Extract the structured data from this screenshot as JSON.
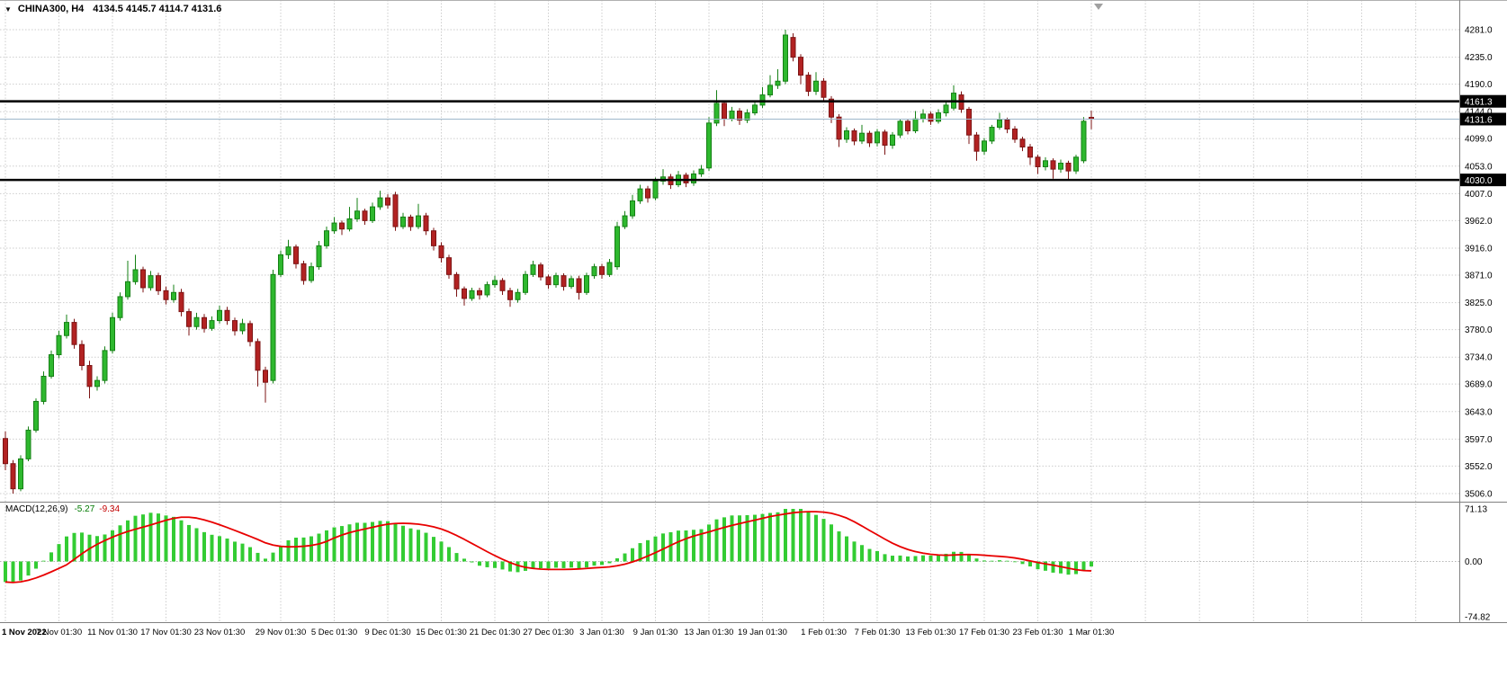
{
  "window": {
    "background": "#ffffff"
  },
  "header": {
    "symbol": "CHINA300, H4",
    "ohlc": "4134.5 4145.7 4114.7 4131.6",
    "open": 4134.5,
    "high": 4145.7,
    "low": 4114.7,
    "close": 4131.6
  },
  "colors": {
    "background": "#ffffff",
    "grid": "#cdcdcd",
    "candle_up": "#2eb82e",
    "candle_up_border": "#158015",
    "candle_down": "#b22222",
    "candle_down_border": "#7c1414",
    "level_line": "#000000",
    "bid_line": "#9db7cb",
    "macd_histogram": "#33cc33",
    "macd_signal": "#e80000",
    "axis_text": "#000000",
    "price_label_bg": "#000000",
    "price_label_text": "#ffffff",
    "separator": "#808080",
    "shift_marker": "#a0a0a0"
  },
  "chart_data": {
    "type": "candlestick",
    "symbol": "CHINA300",
    "timeframe": "H4",
    "grid": true,
    "price_axis_ticks": [
      4281.0,
      4235.0,
      4190.0,
      4144.0,
      4099.0,
      4053.0,
      4007.0,
      3962.0,
      3916.0,
      3871.0,
      3825.0,
      3780.0,
      3734.0,
      3689.0,
      3643.0,
      3597.0,
      3552.0,
      3506.0
    ],
    "price_range": [
      3506.0,
      4281.0
    ],
    "horizontal_lines": [
      {
        "price": 4161.3,
        "label": "4161.3"
      },
      {
        "price": 4030.0,
        "label": "4030.0"
      }
    ],
    "bid": {
      "price": 4131.6,
      "label": "4131.6"
    },
    "time_axis": [
      {
        "label": "1 Nov 2022",
        "candle": 0
      },
      {
        "label": "7 Nov 01:30",
        "candle": 7
      },
      {
        "label": "11 Nov 01:30",
        "candle": 14
      },
      {
        "label": "17 Nov 01:30",
        "candle": 21
      },
      {
        "label": "23 Nov 01:30",
        "candle": 28
      },
      {
        "label": "29 Nov 01:30",
        "candle": 36
      },
      {
        "label": "5 Dec 01:30",
        "candle": 43
      },
      {
        "label": "9 Dec 01:30",
        "candle": 50
      },
      {
        "label": "15 Dec 01:30",
        "candle": 57
      },
      {
        "label": "21 Dec 01:30",
        "candle": 64
      },
      {
        "label": "27 Dec 01:30",
        "candle": 71
      },
      {
        "label": "3 Jan 01:30",
        "candle": 78
      },
      {
        "label": "9 Jan 01:30",
        "candle": 85
      },
      {
        "label": "13 Jan 01:30",
        "candle": 92
      },
      {
        "label": "19 Jan 01:30",
        "candle": 99
      },
      {
        "label": "1 Feb 01:30",
        "candle": 107
      },
      {
        "label": "7 Feb 01:30",
        "candle": 114
      },
      {
        "label": "13 Feb 01:30",
        "candle": 121
      },
      {
        "label": "17 Feb 01:30",
        "candle": 128
      },
      {
        "label": "23 Feb 01:30",
        "candle": 135
      },
      {
        "label": "1 Mar 01:30",
        "candle": 142
      }
    ],
    "candles": [
      [
        3598,
        3610,
        3545,
        3556
      ],
      [
        3556,
        3562,
        3506,
        3514
      ],
      [
        3514,
        3570,
        3510,
        3564
      ],
      [
        3564,
        3618,
        3560,
        3612
      ],
      [
        3612,
        3665,
        3608,
        3660
      ],
      [
        3660,
        3710,
        3655,
        3702
      ],
      [
        3702,
        3745,
        3698,
        3738
      ],
      [
        3738,
        3778,
        3732,
        3770
      ],
      [
        3770,
        3805,
        3765,
        3792
      ],
      [
        3792,
        3798,
        3748,
        3755
      ],
      [
        3755,
        3762,
        3712,
        3720
      ],
      [
        3720,
        3728,
        3665,
        3685
      ],
      [
        3685,
        3702,
        3678,
        3695
      ],
      [
        3695,
        3752,
        3690,
        3745
      ],
      [
        3745,
        3808,
        3740,
        3800
      ],
      [
        3800,
        3842,
        3795,
        3835
      ],
      [
        3835,
        3895,
        3830,
        3860
      ],
      [
        3860,
        3905,
        3855,
        3880
      ],
      [
        3880,
        3885,
        3842,
        3850
      ],
      [
        3850,
        3878,
        3845,
        3870
      ],
      [
        3870,
        3875,
        3838,
        3845
      ],
      [
        3845,
        3852,
        3822,
        3830
      ],
      [
        3830,
        3855,
        3825,
        3842
      ],
      [
        3842,
        3848,
        3802,
        3810
      ],
      [
        3810,
        3815,
        3770,
        3785
      ],
      [
        3785,
        3808,
        3780,
        3800
      ],
      [
        3800,
        3806,
        3775,
        3782
      ],
      [
        3782,
        3802,
        3778,
        3795
      ],
      [
        3795,
        3820,
        3790,
        3812
      ],
      [
        3812,
        3818,
        3788,
        3795
      ],
      [
        3795,
        3800,
        3770,
        3778
      ],
      [
        3778,
        3798,
        3772,
        3790
      ],
      [
        3790,
        3795,
        3752,
        3760
      ],
      [
        3760,
        3765,
        3685,
        3712
      ],
      [
        3712,
        3718,
        3658,
        3692
      ],
      [
        3695,
        3880,
        3690,
        3872
      ],
      [
        3872,
        3912,
        3868,
        3905
      ],
      [
        3905,
        3930,
        3898,
        3918
      ],
      [
        3918,
        3922,
        3882,
        3890
      ],
      [
        3890,
        3895,
        3855,
        3862
      ],
      [
        3862,
        3892,
        3858,
        3885
      ],
      [
        3885,
        3928,
        3880,
        3920
      ],
      [
        3920,
        3952,
        3915,
        3945
      ],
      [
        3945,
        3968,
        3940,
        3958
      ],
      [
        3958,
        3962,
        3938,
        3948
      ],
      [
        3948,
        3985,
        3944,
        3965
      ],
      [
        3965,
        4000,
        3960,
        3978
      ],
      [
        3978,
        3982,
        3955,
        3962
      ],
      [
        3962,
        3992,
        3958,
        3985
      ],
      [
        3985,
        4012,
        3980,
        4000
      ],
      [
        4000,
        4006,
        3982,
        3988
      ],
      [
        4005,
        4010,
        3945,
        3952
      ],
      [
        3952,
        3975,
        3948,
        3968
      ],
      [
        3968,
        3972,
        3945,
        3952
      ],
      [
        3952,
        3990,
        3948,
        3970
      ],
      [
        3970,
        3975,
        3938,
        3945
      ],
      [
        3945,
        3950,
        3912,
        3920
      ],
      [
        3920,
        3926,
        3892,
        3900
      ],
      [
        3900,
        3905,
        3865,
        3872
      ],
      [
        3872,
        3876,
        3835,
        3848
      ],
      [
        3848,
        3852,
        3820,
        3832
      ],
      [
        3832,
        3850,
        3828,
        3845
      ],
      [
        3845,
        3850,
        3830,
        3838
      ],
      [
        3838,
        3860,
        3834,
        3855
      ],
      [
        3855,
        3870,
        3850,
        3862
      ],
      [
        3862,
        3866,
        3838,
        3845
      ],
      [
        3845,
        3850,
        3818,
        3830
      ],
      [
        3830,
        3848,
        3825,
        3842
      ],
      [
        3842,
        3878,
        3838,
        3872
      ],
      [
        3872,
        3895,
        3868,
        3888
      ],
      [
        3888,
        3892,
        3862,
        3868
      ],
      [
        3868,
        3872,
        3848,
        3855
      ],
      [
        3855,
        3875,
        3850,
        3870
      ],
      [
        3870,
        3874,
        3845,
        3852
      ],
      [
        3852,
        3870,
        3848,
        3865
      ],
      [
        3865,
        3870,
        3830,
        3842
      ],
      [
        3842,
        3875,
        3838,
        3870
      ],
      [
        3870,
        3890,
        3865,
        3885
      ],
      [
        3885,
        3890,
        3865,
        3872
      ],
      [
        3872,
        3898,
        3868,
        3892
      ],
      [
        3885,
        3960,
        3880,
        3952
      ],
      [
        3952,
        3978,
        3948,
        3970
      ],
      [
        3970,
        4005,
        3965,
        3995
      ],
      [
        3995,
        4022,
        3990,
        4015
      ],
      [
        4015,
        4020,
        3992,
        4000
      ],
      [
        4000,
        4034,
        3996,
        4028
      ],
      [
        4028,
        4048,
        4022,
        4035
      ],
      [
        4035,
        4040,
        4015,
        4022
      ],
      [
        4022,
        4045,
        4018,
        4038
      ],
      [
        4038,
        4042,
        4018,
        4025
      ],
      [
        4025,
        4046,
        4020,
        4040
      ],
      [
        4040,
        4055,
        4035,
        4048
      ],
      [
        4050,
        4135,
        4045,
        4125
      ],
      [
        4125,
        4180,
        4120,
        4158
      ],
      [
        4158,
        4162,
        4120,
        4132
      ],
      [
        4132,
        4152,
        4128,
        4145
      ],
      [
        4145,
        4150,
        4122,
        4130
      ],
      [
        4130,
        4148,
        4125,
        4142
      ],
      [
        4142,
        4162,
        4138,
        4155
      ],
      [
        4155,
        4185,
        4150,
        4172
      ],
      [
        4172,
        4205,
        4168,
        4188
      ],
      [
        4188,
        4215,
        4182,
        4195
      ],
      [
        4195,
        4281,
        4190,
        4272
      ],
      [
        4268,
        4275,
        4228,
        4235
      ],
      [
        4235,
        4240,
        4190,
        4205
      ],
      [
        4205,
        4210,
        4170,
        4178
      ],
      [
        4178,
        4210,
        4172,
        4195
      ],
      [
        4195,
        4200,
        4160,
        4168
      ],
      [
        4165,
        4170,
        4125,
        4135
      ],
      [
        4135,
        4140,
        4085,
        4098
      ],
      [
        4098,
        4118,
        4092,
        4112
      ],
      [
        4112,
        4116,
        4088,
        4095
      ],
      [
        4095,
        4122,
        4090,
        4108
      ],
      [
        4108,
        4112,
        4085,
        4092
      ],
      [
        4092,
        4115,
        4086,
        4110
      ],
      [
        4110,
        4114,
        4072,
        4088
      ],
      [
        4088,
        4110,
        4082,
        4105
      ],
      [
        4105,
        4132,
        4100,
        4128
      ],
      [
        4128,
        4132,
        4106,
        4112
      ],
      [
        4112,
        4145,
        4108,
        4132
      ],
      [
        4132,
        4148,
        4126,
        4140
      ],
      [
        4140,
        4144,
        4122,
        4128
      ],
      [
        4128,
        4148,
        4124,
        4142
      ],
      [
        4142,
        4160,
        4136,
        4155
      ],
      [
        4150,
        4188,
        4146,
        4175
      ],
      [
        4172,
        4178,
        4142,
        4148
      ],
      [
        4148,
        4152,
        4090,
        4105
      ],
      [
        4105,
        4110,
        4062,
        4078
      ],
      [
        4078,
        4100,
        4072,
        4095
      ],
      [
        4095,
        4122,
        4090,
        4118
      ],
      [
        4118,
        4142,
        4114,
        4130
      ],
      [
        4130,
        4134,
        4108,
        4115
      ],
      [
        4115,
        4120,
        4092,
        4098
      ],
      [
        4098,
        4102,
        4078,
        4085
      ],
      [
        4085,
        4090,
        4055,
        4068
      ],
      [
        4068,
        4072,
        4040,
        4052
      ],
      [
        4052,
        4068,
        4046,
        4062
      ],
      [
        4062,
        4066,
        4032,
        4048
      ],
      [
        4048,
        4064,
        4042,
        4058
      ],
      [
        4058,
        4062,
        4030,
        4045
      ],
      [
        4045,
        4072,
        4040,
        4068
      ],
      [
        4062,
        4135,
        4058,
        4128
      ],
      [
        4134.5,
        4145.7,
        4114.7,
        4131.6
      ]
    ],
    "macd": {
      "name": "MACD(12,26,9)",
      "value_main": "-5.27",
      "value_signal": "-9.34",
      "fast_ema": 12,
      "slow_ema": 26,
      "signal_period": 9,
      "range": [
        -74.82,
        71.13
      ],
      "axis_ticks": [
        {
          "value": 71.13,
          "label": "71.13"
        },
        {
          "value": 0,
          "label": "0.00"
        },
        {
          "value": -74.82,
          "label": "-74.82"
        }
      ]
    }
  }
}
